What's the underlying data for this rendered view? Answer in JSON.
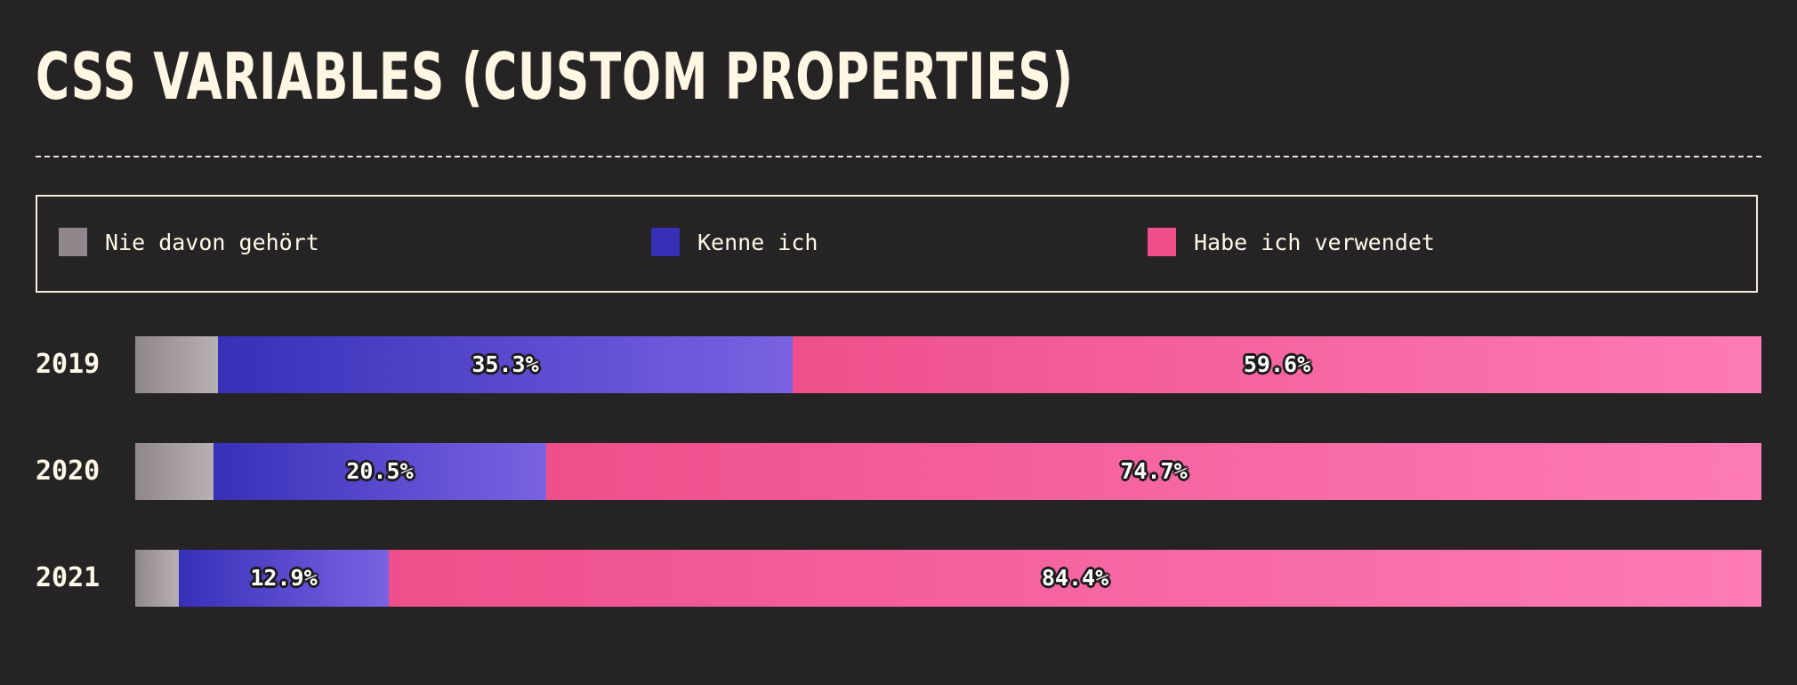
{
  "title": "CSS VARIABLES (CUSTOM PROPERTIES)",
  "legend": [
    {
      "label": "Nie davon gehört",
      "color": "#8f878b"
    },
    {
      "label": "Kenne ich",
      "color": "#3630b8"
    },
    {
      "label": "Habe ich verwendet",
      "color": "#ee4f8a"
    }
  ],
  "chart_data": {
    "type": "bar",
    "orientation": "horizontal",
    "stacked": true,
    "normalized": true,
    "title": "CSS VARIABLES (CUSTOM PROPERTIES)",
    "categories": [
      "2019",
      "2020",
      "2021"
    ],
    "series": [
      {
        "name": "Nie davon gehört",
        "values": [
          5.1,
          4.8,
          2.7
        ],
        "color": "#8f878b",
        "labeled": false
      },
      {
        "name": "Kenne ich",
        "values": [
          35.3,
          20.5,
          12.9
        ],
        "color": "#3630b8",
        "labeled": true
      },
      {
        "name": "Habe ich verwendet",
        "values": [
          59.6,
          74.7,
          84.4
        ],
        "color": "#ee4f8a",
        "labeled": true
      }
    ],
    "xlim": [
      0,
      100
    ],
    "grid": false,
    "legend_position": "top"
  }
}
